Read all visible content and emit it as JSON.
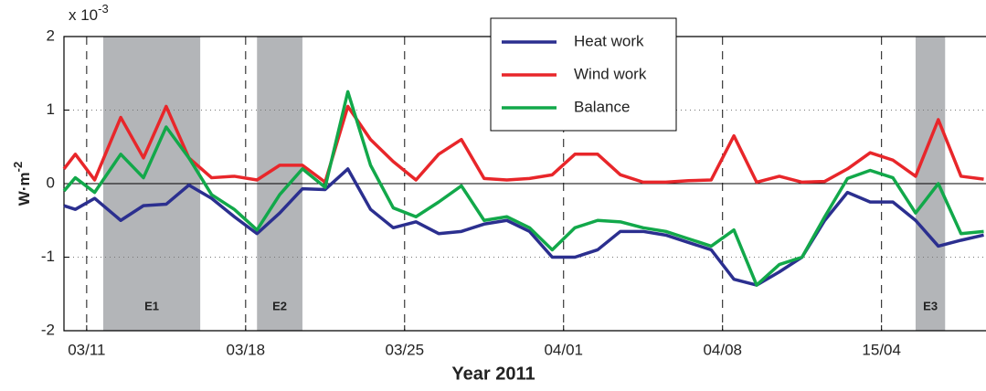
{
  "chart_data": {
    "type": "line",
    "xlabel": "Year 2011",
    "ylabel": "W·m",
    "ylabel_exponent": "-2",
    "y_scale_label": "x 10",
    "y_scale_exponent": "-3",
    "xlim": [
      10,
      50.6
    ],
    "ylim": [
      -2,
      2
    ],
    "yticks": [
      -2,
      -1,
      0,
      1,
      2
    ],
    "xticks": [
      {
        "value": 11,
        "label": "03/11"
      },
      {
        "value": 18,
        "label": "03/18"
      },
      {
        "value": 25,
        "label": "03/25"
      },
      {
        "value": 32,
        "label": "04/01"
      },
      {
        "value": 39,
        "label": "04/08"
      },
      {
        "value": 46,
        "label": "15/04"
      }
    ],
    "grid": true,
    "legend": "top-center",
    "events": [
      {
        "label": "E1",
        "start": 11.73,
        "end": 16.0
      },
      {
        "label": "E2",
        "start": 18.5,
        "end": 20.5
      },
      {
        "label": "E3",
        "start": 47.5,
        "end": 48.8
      }
    ],
    "x": [
      10,
      10.5,
      11.35,
      12.5,
      13.5,
      14.5,
      15.5,
      16.5,
      17.5,
      18.5,
      19.5,
      20.5,
      21.5,
      22.5,
      23.5,
      24.5,
      25.5,
      26.5,
      27.5,
      28.5,
      29.5,
      30.5,
      31.5,
      32.5,
      33.5,
      34.5,
      35.5,
      36.5,
      37.5,
      38.5,
      39.5,
      40.5,
      41.5,
      42.5,
      43.5,
      44.5,
      45.5,
      46.5,
      47.5,
      48.5,
      49.5,
      50.5
    ],
    "series": [
      {
        "name": "Heat work",
        "color": "#2b2f8f",
        "values": [
          -0.3,
          -0.35,
          -0.2,
          -0.5,
          -0.3,
          -0.28,
          -0.02,
          -0.2,
          -0.45,
          -0.68,
          -0.4,
          -0.07,
          -0.08,
          0.2,
          -0.35,
          -0.6,
          -0.52,
          -0.68,
          -0.65,
          -0.55,
          -0.5,
          -0.65,
          -1.0,
          -1.0,
          -0.9,
          -0.65,
          -0.65,
          -0.7,
          -0.8,
          -0.9,
          -1.3,
          -1.38,
          -1.2,
          -1.0,
          -0.5,
          -0.12,
          -0.25,
          -0.25,
          -0.5,
          -0.85,
          -0.77,
          -0.7
        ]
      },
      {
        "name": "Wind work",
        "color": "#e8262a",
        "values": [
          0.2,
          0.4,
          0.05,
          0.9,
          0.35,
          1.05,
          0.35,
          0.08,
          0.1,
          0.05,
          0.25,
          0.25,
          0.02,
          1.05,
          0.6,
          0.3,
          0.05,
          0.4,
          0.6,
          0.07,
          0.05,
          0.07,
          0.12,
          0.4,
          0.4,
          0.12,
          0.02,
          0.02,
          0.04,
          0.05,
          0.65,
          0.02,
          0.1,
          0.02,
          0.03,
          0.2,
          0.42,
          0.32,
          0.1,
          0.87,
          0.1,
          0.06
        ]
      },
      {
        "name": "Balance",
        "color": "#12a84a",
        "values": [
          -0.1,
          0.08,
          -0.12,
          0.4,
          0.08,
          0.77,
          0.35,
          -0.15,
          -0.35,
          -0.63,
          -0.15,
          0.2,
          -0.05,
          1.25,
          0.25,
          -0.33,
          -0.45,
          -0.25,
          -0.03,
          -0.5,
          -0.45,
          -0.6,
          -0.9,
          -0.6,
          -0.5,
          -0.52,
          -0.6,
          -0.65,
          -0.75,
          -0.85,
          -0.63,
          -1.38,
          -1.1,
          -1.0,
          -0.45,
          0.07,
          0.18,
          0.08,
          -0.4,
          0.0,
          -0.68,
          -0.65
        ]
      }
    ]
  }
}
